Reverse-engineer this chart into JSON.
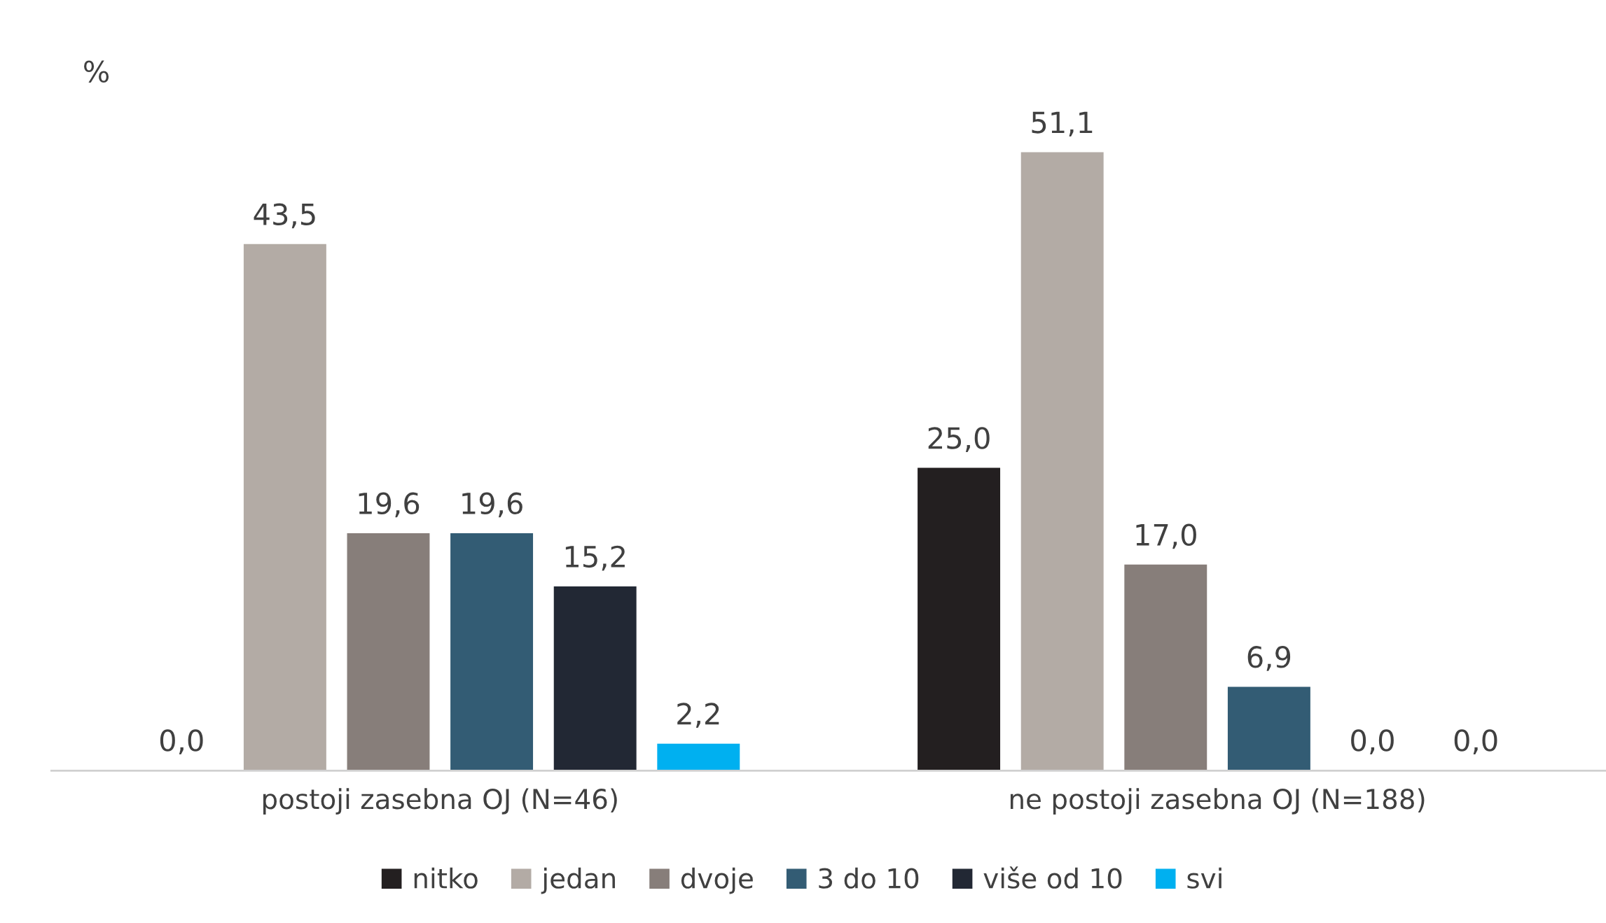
{
  "chart_data": {
    "type": "bar",
    "ylabel": "%",
    "categories": [
      "postoji zasebna OJ (N=46)",
      "ne postoji zasebna OJ (N=188)"
    ],
    "series": [
      {
        "name": "nitko",
        "color": "#231f20",
        "values": [
          0.0,
          25.0
        ],
        "value_labels": [
          "0,0",
          "25,0"
        ]
      },
      {
        "name": "jedan",
        "color": "#b3aba5",
        "values": [
          43.5,
          51.1
        ],
        "value_labels": [
          "43,5",
          "51,1"
        ]
      },
      {
        "name": "dvoje",
        "color": "#877e7a",
        "values": [
          19.6,
          17.0
        ],
        "value_labels": [
          "19,6",
          "17,0"
        ]
      },
      {
        "name": "3 do 10",
        "color": "#335c74",
        "values": [
          19.6,
          6.9
        ],
        "value_labels": [
          "19,6",
          "6,9"
        ]
      },
      {
        "name": "više od 10",
        "color": "#222834",
        "values": [
          15.2,
          0.0
        ],
        "value_labels": [
          "15,2",
          "0,0"
        ]
      },
      {
        "name": "svi",
        "color": "#00b0f0",
        "values": [
          2.2,
          0.0
        ],
        "value_labels": [
          "2,2",
          "0,0"
        ]
      }
    ],
    "legend": "bottom",
    "grid": false
  }
}
